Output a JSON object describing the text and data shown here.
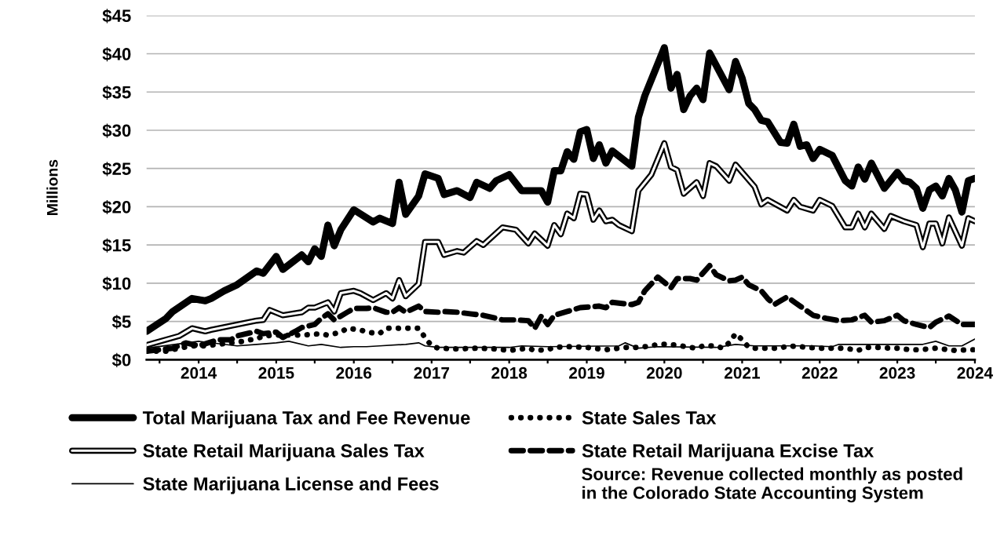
{
  "chart_data": {
    "type": "line",
    "ylabel": "Millions",
    "ylim": [
      0,
      45
    ],
    "yticks": [
      {
        "value": 0,
        "label": "$0"
      },
      {
        "value": 5,
        "label": "$5"
      },
      {
        "value": 10,
        "label": "$10"
      },
      {
        "value": 15,
        "label": "$15"
      },
      {
        "value": 20,
        "label": "$20"
      },
      {
        "value": 25,
        "label": "$25"
      },
      {
        "value": 30,
        "label": "$30"
      },
      {
        "value": 35,
        "label": "$35"
      },
      {
        "value": 40,
        "label": "$40"
      },
      {
        "value": 45,
        "label": "$45"
      }
    ],
    "xlim": [
      "2013-05",
      "2024-01"
    ],
    "xticks": [
      {
        "value": "2013-07",
        "label": null
      },
      {
        "value": "2014-01",
        "label": "2014"
      },
      {
        "value": "2014-07",
        "label": null
      },
      {
        "value": "2015-01",
        "label": "2015"
      },
      {
        "value": "2015-07",
        "label": null
      },
      {
        "value": "2016-01",
        "label": "2016"
      },
      {
        "value": "2016-07",
        "label": null
      },
      {
        "value": "2017-01",
        "label": "2017"
      },
      {
        "value": "2017-07",
        "label": null
      },
      {
        "value": "2018-01",
        "label": "2018"
      },
      {
        "value": "2018-07",
        "label": null
      },
      {
        "value": "2019-01",
        "label": "2019"
      },
      {
        "value": "2019-07",
        "label": null
      },
      {
        "value": "2020-01",
        "label": "2020"
      },
      {
        "value": "2020-07",
        "label": null
      },
      {
        "value": "2021-01",
        "label": "2021"
      },
      {
        "value": "2021-07",
        "label": null
      },
      {
        "value": "2022-01",
        "label": "2022"
      },
      {
        "value": "2022-07",
        "label": null
      },
      {
        "value": "2023-01",
        "label": "2023"
      },
      {
        "value": "2023-07",
        "label": null
      },
      {
        "value": "2024-01",
        "label": "2024"
      }
    ],
    "grid": "y",
    "legend": "bottom",
    "marker": "none",
    "annotations": [
      "Source: Revenue collected monthly as posted\nin the Colorado State Accounting System"
    ],
    "series": [
      {
        "name": "Total Marijuana Tax and Fee Revenue",
        "color": "#000000",
        "line_style": "solid",
        "x": [
          "2013-05",
          "2013-08",
          "2013-09",
          "2013-12",
          "2014-02",
          "2014-03",
          "2014-05",
          "2014-07",
          "2014-10",
          "2014-11",
          "2015-01",
          "2015-02",
          "2015-05",
          "2015-06",
          "2015-07",
          "2015-08",
          "2015-09",
          "2015-10",
          "2015-11",
          "2016-01",
          "2016-04",
          "2016-05",
          "2016-07",
          "2016-08",
          "2016-09",
          "2016-11",
          "2016-12",
          "2017-02",
          "2017-03",
          "2017-05",
          "2017-07",
          "2017-08",
          "2017-10",
          "2017-11",
          "2018-01",
          "2018-03",
          "2018-06",
          "2018-07",
          "2018-08",
          "2018-09",
          "2018-10",
          "2018-11",
          "2018-12",
          "2019-01",
          "2019-02",
          "2019-03",
          "2019-04",
          "2019-05",
          "2019-08",
          "2019-09",
          "2019-10",
          "2020-01",
          "2020-02",
          "2020-03",
          "2020-04",
          "2020-05",
          "2020-06",
          "2020-07",
          "2020-08",
          "2020-11",
          "2020-12",
          "2021-01",
          "2021-02",
          "2021-03",
          "2021-04",
          "2021-05",
          "2021-07",
          "2021-08",
          "2021-09",
          "2021-10",
          "2021-11",
          "2021-12",
          "2022-01",
          "2022-03",
          "2022-05",
          "2022-06",
          "2022-07",
          "2022-08",
          "2022-09",
          "2022-11",
          "2023-01",
          "2023-02",
          "2023-03",
          "2023-04",
          "2023-05",
          "2023-06",
          "2023-07",
          "2023-08",
          "2023-09",
          "2023-10",
          "2023-11",
          "2023-12",
          "2024-01"
        ],
        "values": [
          3.7,
          5.4,
          6.3,
          8.0,
          7.7,
          8.0,
          9.0,
          9.8,
          11.6,
          11.3,
          13.5,
          11.8,
          13.7,
          12.8,
          14.5,
          13.5,
          17.6,
          14.9,
          17.0,
          19.6,
          18.0,
          18.5,
          17.8,
          23.2,
          19.0,
          21.4,
          24.3,
          23.7,
          21.6,
          22.1,
          21.2,
          23.2,
          22.4,
          23.4,
          24.2,
          22.1,
          22.1,
          20.6,
          24.7,
          24.7,
          27.2,
          26.2,
          29.8,
          30.1,
          26.3,
          28.1,
          25.7,
          27.3,
          25.3,
          31.7,
          34.5,
          40.8,
          35.5,
          37.3,
          32.7,
          34.5,
          35.5,
          34.0,
          40.1,
          35.3,
          39.0,
          36.8,
          33.5,
          32.7,
          31.3,
          31.1,
          28.4,
          28.3,
          30.8,
          27.9,
          28.1,
          26.3,
          27.5,
          26.7,
          23.4,
          22.7,
          25.2,
          23.6,
          25.7,
          22.4,
          24.5,
          23.4,
          23.2,
          22.4,
          19.8,
          22.2,
          22.7,
          21.4,
          23.7,
          22.2,
          19.3,
          23.4,
          23.7
        ]
      },
      {
        "name": "State Retail Marijuana Sales Tax",
        "color": "#000000",
        "line_style": "solid",
        "x": [
          "2013-05",
          "2013-10",
          "2013-12",
          "2014-02",
          "2014-03",
          "2014-10",
          "2014-11",
          "2014-12",
          "2015-02",
          "2015-05",
          "2015-06",
          "2015-07",
          "2015-09",
          "2015-10",
          "2015-11",
          "2016-01",
          "2016-02",
          "2016-04",
          "2016-06",
          "2016-07",
          "2016-08",
          "2016-09",
          "2016-11",
          "2016-12",
          "2017-02",
          "2017-03",
          "2017-05",
          "2017-06",
          "2017-08",
          "2017-09",
          "2017-12",
          "2018-02",
          "2018-04",
          "2018-05",
          "2018-07",
          "2018-08",
          "2018-09",
          "2018-10",
          "2018-11",
          "2018-12",
          "2019-01",
          "2019-02",
          "2019-03",
          "2019-04",
          "2019-05",
          "2019-06",
          "2019-08",
          "2019-09",
          "2019-11",
          "2020-01",
          "2020-02",
          "2020-03",
          "2020-04",
          "2020-06",
          "2020-07",
          "2020-08",
          "2020-09",
          "2020-11",
          "2020-12",
          "2021-03",
          "2021-04",
          "2021-05",
          "2021-08",
          "2021-09",
          "2021-10",
          "2021-12",
          "2022-01",
          "2022-03",
          "2022-05",
          "2022-06",
          "2022-07",
          "2022-08",
          "2022-09",
          "2022-11",
          "2022-12",
          "2023-02",
          "2023-04",
          "2023-05",
          "2023-06",
          "2023-07",
          "2023-08",
          "2023-09",
          "2023-11",
          "2023-12",
          "2024-01"
        ],
        "values": [
          1.9,
          3.1,
          4.1,
          3.7,
          3.9,
          5.1,
          5.2,
          6.5,
          5.8,
          6.2,
          6.8,
          6.8,
          7.5,
          6.3,
          8.7,
          9.0,
          8.7,
          7.8,
          8.7,
          8.0,
          10.4,
          8.3,
          9.9,
          15.4,
          15.4,
          13.7,
          14.2,
          14.0,
          15.5,
          15.0,
          17.3,
          17.0,
          15.2,
          16.5,
          14.9,
          17.6,
          16.4,
          19.1,
          18.5,
          21.7,
          21.6,
          18.3,
          19.5,
          18.1,
          18.3,
          17.6,
          16.8,
          22.1,
          24.2,
          28.3,
          25.2,
          24.8,
          21.7,
          23.2,
          21.4,
          25.7,
          25.3,
          23.4,
          25.5,
          22.6,
          20.3,
          20.9,
          19.5,
          20.9,
          20.0,
          19.5,
          20.9,
          20.1,
          17.3,
          17.3,
          19.1,
          17.3,
          19.1,
          17.1,
          18.8,
          18.1,
          17.6,
          14.7,
          17.8,
          17.8,
          15.2,
          18.6,
          14.9,
          18.5,
          18.1
        ]
      },
      {
        "name": "State Marijuana License and Fees",
        "color": "#000000",
        "line_style": "solid",
        "x": [
          "2013-05",
          "2014-01",
          "2014-07",
          "2014-10",
          "2015-01",
          "2015-03",
          "2015-06",
          "2015-08",
          "2015-11",
          "2016-01",
          "2016-03",
          "2016-05",
          "2016-09",
          "2016-11",
          "2016-12",
          "2017-02",
          "2018-01",
          "2018-03",
          "2018-07",
          "2019-06",
          "2019-07",
          "2019-09",
          "2019-12",
          "2020-09",
          "2020-12",
          "2021-03",
          "2021-12",
          "2022-03",
          "2022-04",
          "2022-07",
          "2023-05",
          "2023-07",
          "2023-09",
          "2023-11",
          "2024-01"
        ],
        "values": [
          1.5,
          2.4,
          1.8,
          2.0,
          2.2,
          2.4,
          1.8,
          2.0,
          1.6,
          1.7,
          1.7,
          1.8,
          2.0,
          2.2,
          1.8,
          1.6,
          1.6,
          1.8,
          1.7,
          1.8,
          2.2,
          1.5,
          1.7,
          1.6,
          2.0,
          1.8,
          1.8,
          1.7,
          2.0,
          2.0,
          2.0,
          2.4,
          1.8,
          1.8,
          2.7
        ]
      },
      {
        "name": "State Sales Tax",
        "color": "#000000",
        "line_style": "dotted",
        "x": [
          "2013-05",
          "2013-08",
          "2013-10",
          "2013-12",
          "2014-02",
          "2014-04",
          "2014-06",
          "2014-08",
          "2014-09",
          "2014-10",
          "2014-11",
          "2015-01",
          "2015-03",
          "2015-05",
          "2015-08",
          "2015-09",
          "2015-11",
          "2015-12",
          "2016-02",
          "2016-03",
          "2016-05",
          "2016-06",
          "2016-08",
          "2016-09",
          "2016-11",
          "2016-12",
          "2017-01",
          "2017-02",
          "2017-05",
          "2017-08",
          "2017-11",
          "2018-01",
          "2018-02",
          "2018-04",
          "2018-05",
          "2018-07",
          "2018-08",
          "2018-10",
          "2019-01",
          "2019-02",
          "2019-04",
          "2019-06",
          "2019-07",
          "2019-09",
          "2019-11",
          "2019-12",
          "2020-01",
          "2020-03",
          "2020-05",
          "2020-06",
          "2020-07",
          "2020-09",
          "2020-10",
          "2020-11",
          "2020-12",
          "2021-01",
          "2021-02",
          "2021-03",
          "2021-05",
          "2021-07",
          "2021-08",
          "2021-10",
          "2021-11",
          "2022-01",
          "2022-02",
          "2022-04",
          "2022-05",
          "2022-07",
          "2022-08",
          "2022-10",
          "2022-12",
          "2023-01",
          "2023-03",
          "2023-04",
          "2023-06",
          "2023-07",
          "2023-09",
          "2023-10",
          "2023-12",
          "2024-01"
        ],
        "values": [
          1.1,
          1.1,
          1.5,
          1.8,
          1.8,
          2.0,
          2.2,
          2.4,
          2.6,
          2.7,
          3.1,
          3.2,
          3.2,
          3.2,
          3.4,
          3.2,
          3.6,
          4.1,
          3.9,
          3.6,
          3.4,
          4.1,
          4.1,
          4.1,
          4.1,
          2.9,
          1.8,
          1.5,
          1.4,
          1.5,
          1.4,
          1.2,
          1.3,
          1.5,
          1.2,
          1.3,
          1.6,
          1.7,
          1.6,
          1.5,
          1.3,
          1.5,
          1.6,
          1.6,
          1.8,
          2.0,
          2.0,
          1.9,
          1.6,
          1.5,
          1.8,
          1.8,
          1.5,
          2.2,
          3.4,
          2.6,
          1.6,
          1.5,
          1.5,
          1.5,
          1.8,
          1.7,
          1.6,
          1.5,
          1.5,
          1.5,
          1.5,
          1.2,
          1.6,
          1.6,
          1.5,
          1.5,
          1.3,
          1.3,
          1.4,
          1.5,
          1.3,
          1.2,
          1.3,
          1.3
        ]
      },
      {
        "name": "State Retail Marijuana Excise Tax",
        "color": "#000000",
        "line_style": "dashed",
        "x": [
          "2013-05",
          "2013-09",
          "2013-11",
          "2014-01",
          "2014-04",
          "2014-06",
          "2014-07",
          "2014-10",
          "2014-11",
          "2015-01",
          "2015-02",
          "2015-04",
          "2015-05",
          "2015-07",
          "2015-08",
          "2015-09",
          "2015-10",
          "2015-12",
          "2016-01",
          "2016-03",
          "2016-04",
          "2016-06",
          "2016-07",
          "2016-08",
          "2016-09",
          "2016-11",
          "2016-12",
          "2017-02",
          "2017-03",
          "2017-05",
          "2017-07",
          "2017-09",
          "2017-12",
          "2018-02",
          "2018-04",
          "2018-05",
          "2018-06",
          "2018-07",
          "2018-08",
          "2018-10",
          "2018-12",
          "2019-03",
          "2019-04",
          "2019-05",
          "2019-08",
          "2019-09",
          "2019-10",
          "2019-12",
          "2020-02",
          "2020-03",
          "2020-05",
          "2020-06",
          "2020-08",
          "2020-09",
          "2020-11",
          "2020-12",
          "2021-01",
          "2021-02",
          "2021-04",
          "2021-05",
          "2021-06",
          "2021-07",
          "2021-08",
          "2021-10",
          "2021-12",
          "2022-02",
          "2022-04",
          "2022-06",
          "2022-08",
          "2022-09",
          "2022-11",
          "2023-01",
          "2023-02",
          "2023-04",
          "2023-06",
          "2023-07",
          "2023-09",
          "2023-11",
          "2024-01"
        ],
        "values": [
          1.1,
          1.5,
          2.2,
          1.8,
          2.6,
          2.6,
          3.1,
          3.7,
          3.4,
          3.6,
          2.9,
          3.7,
          4.2,
          4.6,
          5.4,
          6.0,
          5.2,
          6.2,
          6.7,
          6.7,
          6.8,
          6.2,
          6.2,
          6.8,
          6.2,
          7.0,
          6.3,
          6.2,
          6.3,
          6.2,
          6.0,
          5.8,
          5.2,
          5.2,
          5.1,
          4.1,
          5.7,
          4.6,
          5.8,
          6.3,
          6.8,
          7.0,
          6.8,
          7.5,
          7.2,
          7.5,
          9.0,
          10.8,
          9.4,
          10.6,
          10.6,
          10.4,
          12.3,
          11.1,
          10.3,
          10.4,
          10.8,
          9.8,
          9.0,
          8.0,
          7.2,
          7.7,
          8.2,
          7.0,
          5.8,
          5.4,
          5.1,
          5.2,
          5.8,
          4.9,
          5.1,
          5.8,
          5.1,
          4.6,
          4.2,
          4.9,
          5.7,
          4.6,
          4.6
        ]
      }
    ]
  }
}
